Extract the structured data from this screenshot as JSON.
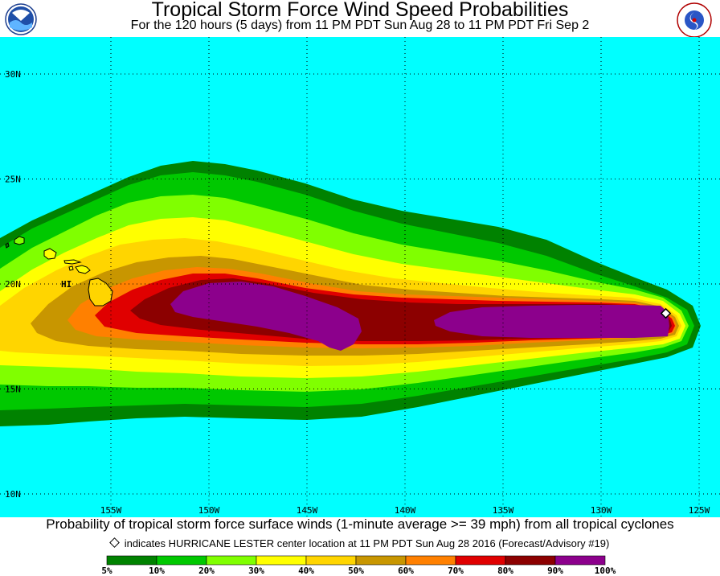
{
  "header": {
    "title": "Tropical Storm Force Wind Speed Probabilities",
    "subtitle": "For the 120 hours (5 days) from 11 PM PDT Sun Aug 28 to 11 PM PDT Fri Sep 2",
    "logo_left": "NOAA",
    "logo_right": "NATIONAL WEATHER SERVICE"
  },
  "map": {
    "background_color": "#00ffff",
    "lat_labels": [
      "30N",
      "25N",
      "20N",
      "15N",
      "10N"
    ],
    "lon_labels": [
      "155W",
      "150W",
      "145W",
      "140W",
      "135W",
      "130W",
      "125W"
    ],
    "lat_values": [
      30,
      25,
      20,
      15,
      10
    ],
    "lon_values": [
      -155,
      -150,
      -145,
      -140,
      -135,
      -130,
      -125
    ],
    "place_label": "HI",
    "storm": {
      "name": "HURRICANE LESTER",
      "lat": 18.6,
      "lon": -126.7
    }
  },
  "footer": {
    "caption": "Probability of tropical storm force surface winds (1-minute average >= 39 mph) from all tropical cyclones",
    "note": "indicates HURRICANE LESTER center location at 11 PM PDT Sun Aug 28 2016 (Forecast/Advisory #19)"
  },
  "legend": {
    "colors": [
      "#008200",
      "#00c800",
      "#80ff00",
      "#ffff00",
      "#ffd500",
      "#c89600",
      "#ff8000",
      "#e00000",
      "#8c0000",
      "#8c008c"
    ],
    "labels": [
      "5%",
      "10%",
      "20%",
      "30%",
      "40%",
      "50%",
      "60%",
      "70%",
      "80%",
      "90%",
      "100%"
    ]
  }
}
